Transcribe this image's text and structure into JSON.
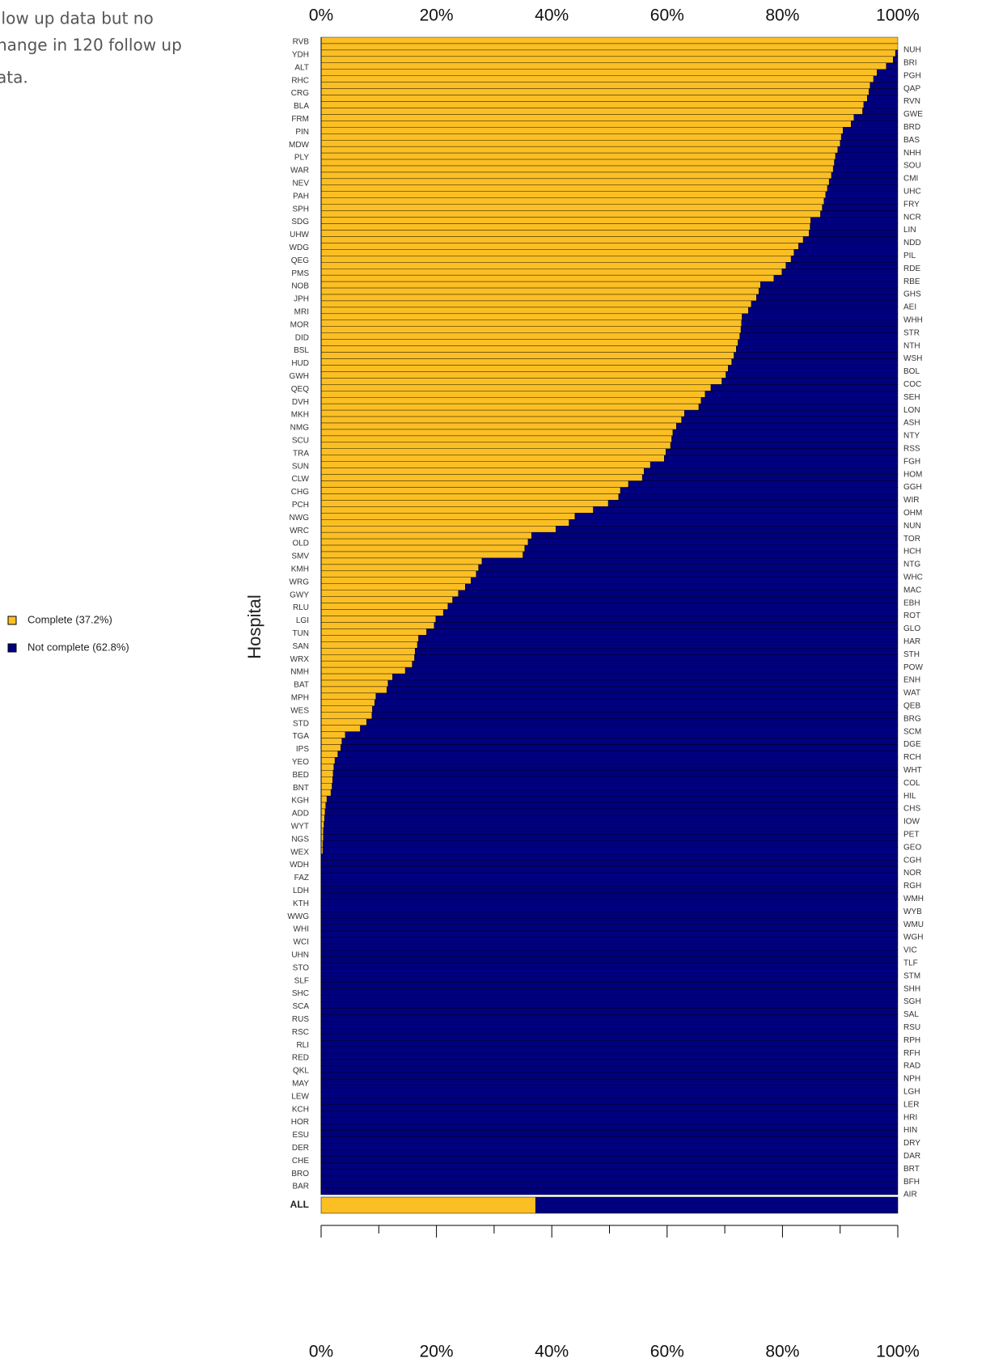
{
  "chart_data": {
    "type": "stacked_barh",
    "annotation_lines": [
      "llow up data but no",
      "hange in 120 follow up",
      "ata."
    ],
    "y_label": "Hospital",
    "total_label": "ALL",
    "categories": [
      "RVB",
      "NUH",
      "YDH",
      "BRI",
      "ALT",
      "PGH",
      "RHC",
      "QAP",
      "CRG",
      "RVN",
      "BLA",
      "GWE",
      "FRM",
      "BRD",
      "PIN",
      "BAS",
      "MDW",
      "NHH",
      "PLY",
      "SOU",
      "WAR",
      "CMI",
      "NEV",
      "UHC",
      "PAH",
      "FRY",
      "SPH",
      "NCR",
      "SDG",
      "LIN",
      "UHW",
      "NDD",
      "WDG",
      "PIL",
      "QEG",
      "RDE",
      "PMS",
      "RBE",
      "NOB",
      "GHS",
      "JPH",
      "AEI",
      "MRI",
      "WHH",
      "MOR",
      "STR",
      "DID",
      "NTH",
      "BSL",
      "WSH",
      "HUD",
      "BOL",
      "GWH",
      "COC",
      "QEQ",
      "SEH",
      "DVH",
      "LON",
      "MKH",
      "ASH",
      "NMG",
      "NTY",
      "SCU",
      "RSS",
      "TRA",
      "FGH",
      "SUN",
      "HOM",
      "CLW",
      "GGH",
      "CHG",
      "WIR",
      "PCH",
      "OHM",
      "NWG",
      "NUN",
      "WRC",
      "TOR",
      "OLD",
      "HCH",
      "SMV",
      "NTG",
      "KMH",
      "WHC",
      "WRG",
      "MAC",
      "GWY",
      "EBH",
      "RLU",
      "ROT",
      "LGI",
      "GLO",
      "TUN",
      "HAR",
      "SAN",
      "STH",
      "WRX",
      "POW",
      "NMH",
      "ENH",
      "BAT",
      "WAT",
      "MPH",
      "QEB",
      "WES",
      "BRG",
      "STD",
      "SCM",
      "TGA",
      "DGE",
      "IPS",
      "RCH",
      "YEO",
      "WHT",
      "BED",
      "COL",
      "BNT",
      "HIL",
      "KGH",
      "CHS",
      "ADD",
      "IOW",
      "WYT",
      "PET",
      "NGS",
      "GEO",
      "WEX",
      "CGH",
      "WDH",
      "NOR",
      "FAZ",
      "RGH",
      "LDH",
      "WMH",
      "KTH",
      "WYB",
      "WWG",
      "WMU",
      "WHI",
      "WGH",
      "WCI",
      "VIC",
      "UHN",
      "TLF",
      "STO",
      "STM",
      "SLF",
      "SHH",
      "SHC",
      "SGH",
      "SCA",
      "SAL",
      "RUS",
      "RSU",
      "RSC",
      "RPH",
      "RLI",
      "RFH",
      "RED",
      "RAD",
      "QKL",
      "NPH",
      "MAY",
      "LGH",
      "LEW",
      "LER",
      "KCH",
      "HRI",
      "HOR",
      "HIN",
      "ESU",
      "DRY",
      "DER",
      "DAR",
      "CHE",
      "BRT",
      "BRO",
      "BFH",
      "BAR",
      "AIR"
    ],
    "series": [
      {
        "name": "Complete (37.2%)",
        "color": "#fbbf24",
        "total": 37.2,
        "values": [
          100,
          100,
          99.6,
          99.2,
          98.0,
          96.4,
          95.8,
          95.2,
          95.0,
          94.7,
          94.1,
          93.9,
          92.4,
          91.9,
          90.5,
          90.2,
          90.0,
          89.6,
          89.2,
          89.0,
          88.8,
          88.5,
          88.1,
          87.8,
          87.5,
          87.2,
          86.9,
          86.6,
          84.9,
          84.8,
          84.6,
          83.6,
          82.8,
          82.0,
          81.5,
          80.6,
          79.9,
          78.5,
          76.2,
          75.9,
          75.5,
          74.6,
          74.1,
          73.0,
          72.9,
          72.8,
          72.6,
          72.3,
          72.0,
          71.6,
          71.2,
          70.6,
          70.2,
          69.5,
          67.6,
          66.6,
          65.9,
          65.5,
          63.0,
          62.5,
          61.6,
          61.0,
          60.8,
          60.6,
          59.8,
          59.5,
          57.1,
          56.0,
          55.7,
          53.3,
          51.9,
          51.6,
          49.8,
          47.2,
          44.0,
          43.0,
          40.7,
          36.5,
          35.9,
          35.3,
          35.0,
          27.9,
          27.3,
          26.9,
          26.0,
          25.0,
          23.8,
          22.8,
          22.0,
          21.2,
          19.9,
          19.6,
          18.3,
          16.9,
          16.7,
          16.3,
          16.2,
          15.8,
          14.6,
          12.4,
          11.6,
          11.4,
          9.5,
          9.3,
          8.9,
          8.8,
          7.9,
          6.8,
          4.2,
          3.6,
          3.4,
          2.9,
          2.4,
          2.2,
          2.1,
          2.0,
          1.9,
          1.7,
          1.0,
          0.8,
          0.7,
          0.6,
          0.5,
          0.4,
          0.4,
          0.3,
          0.3,
          0,
          0,
          0,
          0,
          0,
          0,
          0,
          0,
          0,
          0,
          0,
          0,
          0,
          0,
          0,
          0,
          0,
          0,
          0,
          0,
          0,
          0,
          0,
          0,
          0,
          0,
          0,
          0,
          0,
          0,
          0,
          0,
          0,
          0,
          0,
          0,
          0,
          0,
          0,
          0,
          0,
          0,
          0,
          0,
          0,
          0,
          0,
          0,
          0,
          0,
          0,
          0,
          0
        ]
      },
      {
        "name": "Not complete (62.8%)",
        "color": "#00007f",
        "total": 62.8,
        "values": [
          0,
          0,
          0.4,
          0.8,
          2.0,
          3.6,
          4.2,
          4.8,
          5.0,
          5.3,
          5.9,
          6.1,
          7.6,
          8.1,
          9.5,
          9.8,
          10.0,
          10.4,
          10.8,
          11.0,
          11.2,
          11.5,
          11.9,
          12.2,
          12.5,
          12.8,
          13.1,
          13.4,
          15.1,
          15.2,
          15.4,
          16.4,
          17.2,
          18.0,
          18.5,
          19.4,
          20.1,
          21.5,
          23.8,
          24.1,
          24.5,
          25.4,
          25.9,
          27.0,
          27.1,
          27.2,
          27.4,
          27.7,
          28.0,
          28.4,
          28.8,
          29.4,
          29.8,
          30.5,
          32.4,
          33.4,
          34.1,
          34.5,
          37.0,
          37.5,
          38.4,
          39.0,
          39.2,
          39.4,
          40.2,
          40.5,
          42.9,
          44.0,
          44.3,
          46.7,
          48.1,
          48.4,
          50.2,
          52.8,
          56.0,
          57.0,
          59.3,
          63.5,
          64.1,
          64.7,
          65.0,
          72.1,
          72.7,
          73.1,
          74.0,
          75.0,
          76.2,
          77.2,
          78.0,
          78.8,
          80.1,
          80.4,
          81.7,
          83.1,
          83.3,
          83.7,
          83.8,
          84.2,
          85.4,
          87.6,
          88.4,
          88.6,
          90.5,
          90.7,
          91.1,
          91.2,
          92.1,
          93.2,
          95.8,
          96.4,
          96.6,
          97.1,
          97.6,
          97.8,
          97.9,
          98.0,
          98.1,
          98.3,
          99.0,
          99.2,
          99.3,
          99.4,
          99.5,
          99.6,
          99.6,
          99.7,
          99.7,
          100,
          100,
          100,
          100,
          100,
          100,
          100,
          100,
          100,
          100,
          100,
          100,
          100,
          100,
          100,
          100,
          100,
          100,
          100,
          100,
          100,
          100,
          100,
          100,
          100,
          100,
          100,
          100,
          100,
          100,
          100,
          100,
          100,
          100,
          100,
          100,
          100,
          100,
          100,
          100,
          100,
          100,
          100,
          100,
          100,
          100,
          100,
          100,
          100,
          100,
          100,
          100,
          100
        ]
      }
    ],
    "xlim": [
      0,
      100
    ],
    "xticks": [
      {
        "value": 0,
        "label": "0%"
      },
      {
        "value": 20,
        "label": "20%"
      },
      {
        "value": 40,
        "label": "40%"
      },
      {
        "value": 60,
        "label": "60%"
      },
      {
        "value": 80,
        "label": "80%"
      },
      {
        "value": 100,
        "label": "100%"
      }
    ],
    "minor_xticks": [
      10,
      30,
      50,
      70,
      90
    ]
  }
}
